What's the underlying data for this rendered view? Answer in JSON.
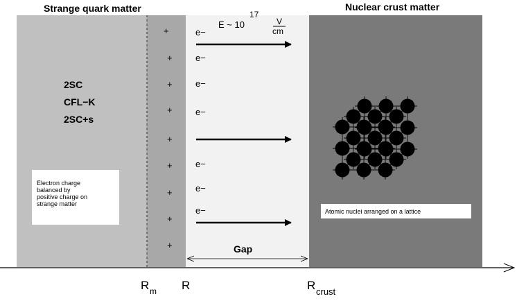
{
  "regions": {
    "left_title": "Strange quark matter",
    "right_title": "Nuclear crust matter",
    "phases": [
      "2SC",
      "CFL−K",
      "2SC+s"
    ],
    "gap_label": "Gap"
  },
  "field": {
    "prefix": "E ~ 10",
    "exponent": "17",
    "unit_num": "V",
    "unit_den": "cm"
  },
  "charges": {
    "positive": "+",
    "electron": "e−"
  },
  "notes": {
    "electron_box": [
      "Electron charge",
      "balanced by",
      "positive charge on",
      "strange matter"
    ],
    "lattice_box": "Atomic nuclei arranged on a lattice"
  },
  "axis_labels": {
    "rm_main": "R",
    "rm_sub": "m",
    "r": "R",
    "rcrust_main": "R",
    "rcrust_sub": "crust"
  },
  "colors": {
    "quark_matter": "#c0c0c0",
    "charge_layer": "#a8a8a8",
    "gap": "#f2f2f2",
    "crust": "#7a7a7a"
  }
}
